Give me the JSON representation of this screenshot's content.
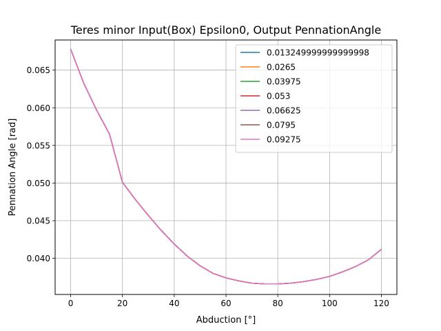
{
  "chart_data": {
    "type": "line",
    "title": "Teres minor Input(Box) Epsilon0, Output PennationAngle",
    "xlabel": "Abduction [°]",
    "ylabel": "Pennation Angle [rad]",
    "xlim": [
      -6,
      126
    ],
    "ylim": [
      0.0352,
      0.069
    ],
    "xticks": [
      0,
      20,
      40,
      60,
      80,
      100,
      120
    ],
    "xtick_labels": [
      "0",
      "20",
      "40",
      "60",
      "80",
      "100",
      "120"
    ],
    "yticks": [
      0.04,
      0.045,
      0.05,
      0.055,
      0.06,
      0.065
    ],
    "ytick_labels": [
      "0.040",
      "0.045",
      "0.050",
      "0.055",
      "0.060",
      "0.065"
    ],
    "grid": true,
    "legend_position": "top-right",
    "x": [
      0,
      5,
      10,
      15,
      20,
      25,
      30,
      35,
      40,
      45,
      50,
      55,
      60,
      65,
      70,
      75,
      80,
      85,
      90,
      95,
      100,
      105,
      110,
      115,
      120
    ],
    "series": [
      {
        "name": "0.013249999999999998",
        "color": "#1f77b4",
        "values": [
          0.0678,
          0.0633,
          0.0597,
          0.0565,
          0.0501,
          0.0478,
          0.0457,
          0.0437,
          0.0419,
          0.0403,
          0.039,
          0.038,
          0.0374,
          0.037,
          0.0367,
          0.0366,
          0.0366,
          0.0367,
          0.0369,
          0.0372,
          0.0376,
          0.0382,
          0.0389,
          0.0398,
          0.0412
        ]
      },
      {
        "name": "0.0265",
        "color": "#ff7f0e",
        "values": [
          0.0678,
          0.0633,
          0.0597,
          0.0565,
          0.0501,
          0.0478,
          0.0457,
          0.0437,
          0.0419,
          0.0403,
          0.039,
          0.038,
          0.0374,
          0.037,
          0.0367,
          0.0366,
          0.0366,
          0.0367,
          0.0369,
          0.0372,
          0.0376,
          0.0382,
          0.0389,
          0.0398,
          0.0412
        ]
      },
      {
        "name": "0.03975",
        "color": "#2ca02c",
        "values": [
          0.0678,
          0.0633,
          0.0597,
          0.0565,
          0.0501,
          0.0478,
          0.0457,
          0.0437,
          0.0419,
          0.0403,
          0.039,
          0.038,
          0.0374,
          0.037,
          0.0367,
          0.0366,
          0.0366,
          0.0367,
          0.0369,
          0.0372,
          0.0376,
          0.0382,
          0.0389,
          0.0398,
          0.0412
        ]
      },
      {
        "name": "0.053",
        "color": "#d62728",
        "values": [
          0.0678,
          0.0633,
          0.0597,
          0.0565,
          0.0501,
          0.0478,
          0.0457,
          0.0437,
          0.0419,
          0.0403,
          0.039,
          0.038,
          0.0374,
          0.037,
          0.0367,
          0.0366,
          0.0366,
          0.0367,
          0.0369,
          0.0372,
          0.0376,
          0.0382,
          0.0389,
          0.0398,
          0.0412
        ]
      },
      {
        "name": "0.06625",
        "color": "#9467bd",
        "values": [
          0.0678,
          0.0633,
          0.0597,
          0.0565,
          0.0501,
          0.0478,
          0.0457,
          0.0437,
          0.0419,
          0.0403,
          0.039,
          0.038,
          0.0374,
          0.037,
          0.0367,
          0.0366,
          0.0366,
          0.0367,
          0.0369,
          0.0372,
          0.0376,
          0.0382,
          0.0389,
          0.0398,
          0.0412
        ]
      },
      {
        "name": "0.0795",
        "color": "#8c564b",
        "values": [
          0.0678,
          0.0633,
          0.0597,
          0.0565,
          0.0501,
          0.0478,
          0.0457,
          0.0437,
          0.0419,
          0.0403,
          0.039,
          0.038,
          0.0374,
          0.037,
          0.0367,
          0.0366,
          0.0366,
          0.0367,
          0.0369,
          0.0372,
          0.0376,
          0.0382,
          0.0389,
          0.0398,
          0.0412
        ]
      },
      {
        "name": "0.09275",
        "color": "#e377c2",
        "values": [
          0.0678,
          0.0633,
          0.0597,
          0.0565,
          0.0501,
          0.0478,
          0.0457,
          0.0437,
          0.0419,
          0.0403,
          0.039,
          0.038,
          0.0374,
          0.037,
          0.0367,
          0.0366,
          0.0366,
          0.0367,
          0.0369,
          0.0372,
          0.0376,
          0.0382,
          0.0389,
          0.0398,
          0.0412
        ]
      }
    ]
  }
}
